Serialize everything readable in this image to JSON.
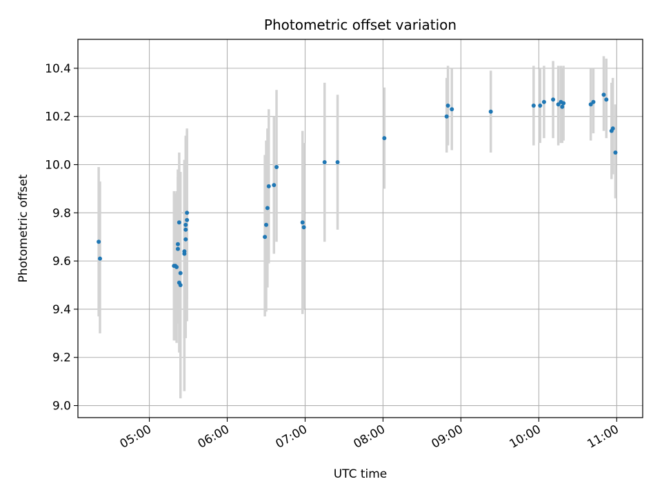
{
  "chart_data": {
    "type": "scatter",
    "title": "Photometric offset variation",
    "xlabel": "UTC time",
    "ylabel": "Photometric offset",
    "x_unit": "hours UTC",
    "xlim": [
      "04:05",
      "11:20"
    ],
    "ylim": [
      8.95,
      10.52
    ],
    "xticks": [
      "05:00",
      "06:00",
      "07:00",
      "08:00",
      "09:00",
      "10:00",
      "11:00"
    ],
    "yticks": [
      "9.0",
      "9.2",
      "9.4",
      "9.6",
      "9.8",
      "10.0",
      "10.2",
      "10.4"
    ],
    "grid": true,
    "legend": "none",
    "colors": {
      "point": "#1f77b4",
      "errorbar": "#d3d3d3",
      "grid": "#b0b0b0"
    },
    "points": [
      {
        "x": "04:21",
        "y": 9.68,
        "ylo": 9.37,
        "yhi": 9.99
      },
      {
        "x": "04:22",
        "y": 9.61,
        "ylo": 9.3,
        "yhi": 9.93
      },
      {
        "x": "05:19",
        "y": 9.58,
        "ylo": 9.27,
        "yhi": 9.89
      },
      {
        "x": "05:20",
        "y": 9.58,
        "ylo": 9.27,
        "yhi": 9.88
      },
      {
        "x": "05:21",
        "y": 9.575,
        "ylo": 9.26,
        "yhi": 9.89
      },
      {
        "x": "05:22",
        "y": 9.65,
        "ylo": 9.34,
        "yhi": 9.95
      },
      {
        "x": "05:22",
        "y": 9.67,
        "ylo": 9.35,
        "yhi": 9.98
      },
      {
        "x": "05:23",
        "y": 9.76,
        "ylo": 9.45,
        "yhi": 10.05
      },
      {
        "x": "05:23",
        "y": 9.51,
        "ylo": 9.22,
        "yhi": 9.82
      },
      {
        "x": "05:24",
        "y": 9.5,
        "ylo": 9.04,
        "yhi": 9.97
      },
      {
        "x": "05:24",
        "y": 9.55,
        "ylo": 9.03,
        "yhi": 9.96
      },
      {
        "x": "05:27",
        "y": 9.64,
        "ylo": 9.28,
        "yhi": 10.0
      },
      {
        "x": "05:27",
        "y": 9.63,
        "ylo": 9.06,
        "yhi": 10.02
      },
      {
        "x": "05:28",
        "y": 9.69,
        "ylo": 9.28,
        "yhi": 10.09
      },
      {
        "x": "05:28",
        "y": 9.73,
        "ylo": 9.31,
        "yhi": 10.11
      },
      {
        "x": "05:28",
        "y": 9.75,
        "ylo": 9.33,
        "yhi": 10.12
      },
      {
        "x": "05:29",
        "y": 9.77,
        "ylo": 9.35,
        "yhi": 10.14
      },
      {
        "x": "05:29",
        "y": 9.8,
        "ylo": 9.44,
        "yhi": 10.15
      },
      {
        "x": "06:29",
        "y": 9.7,
        "ylo": 9.37,
        "yhi": 10.04
      },
      {
        "x": "06:30",
        "y": 9.75,
        "ylo": 9.39,
        "yhi": 10.1
      },
      {
        "x": "06:31",
        "y": 9.82,
        "ylo": 9.49,
        "yhi": 10.15
      },
      {
        "x": "06:32",
        "y": 9.91,
        "ylo": 9.59,
        "yhi": 10.23
      },
      {
        "x": "06:36",
        "y": 9.915,
        "ylo": 9.63,
        "yhi": 10.2
      },
      {
        "x": "06:38",
        "y": 9.99,
        "ylo": 9.68,
        "yhi": 10.31
      },
      {
        "x": "06:58",
        "y": 9.76,
        "ylo": 9.38,
        "yhi": 10.14
      },
      {
        "x": "06:59",
        "y": 9.74,
        "ylo": 9.4,
        "yhi": 10.09
      },
      {
        "x": "07:15",
        "y": 10.01,
        "ylo": 9.68,
        "yhi": 10.34
      },
      {
        "x": "07:25",
        "y": 10.01,
        "ylo": 9.73,
        "yhi": 10.29
      },
      {
        "x": "08:01",
        "y": 10.11,
        "ylo": 9.9,
        "yhi": 10.32
      },
      {
        "x": "08:49",
        "y": 10.2,
        "ylo": 10.05,
        "yhi": 10.36
      },
      {
        "x": "08:50",
        "y": 10.245,
        "ylo": 10.08,
        "yhi": 10.41
      },
      {
        "x": "08:53",
        "y": 10.23,
        "ylo": 10.06,
        "yhi": 10.4
      },
      {
        "x": "09:23",
        "y": 10.22,
        "ylo": 10.05,
        "yhi": 10.39
      },
      {
        "x": "09:56",
        "y": 10.245,
        "ylo": 10.08,
        "yhi": 10.41
      },
      {
        "x": "10:01",
        "y": 10.245,
        "ylo": 10.09,
        "yhi": 10.4
      },
      {
        "x": "10:04",
        "y": 10.26,
        "ylo": 10.11,
        "yhi": 10.41
      },
      {
        "x": "10:11",
        "y": 10.27,
        "ylo": 10.11,
        "yhi": 10.43
      },
      {
        "x": "10:15",
        "y": 10.25,
        "ylo": 10.08,
        "yhi": 10.41
      },
      {
        "x": "10:17",
        "y": 10.26,
        "ylo": 10.09,
        "yhi": 10.41
      },
      {
        "x": "10:18",
        "y": 10.24,
        "ylo": 10.09,
        "yhi": 10.4
      },
      {
        "x": "10:19",
        "y": 10.255,
        "ylo": 10.1,
        "yhi": 10.41
      },
      {
        "x": "10:40",
        "y": 10.25,
        "ylo": 10.1,
        "yhi": 10.4
      },
      {
        "x": "10:42",
        "y": 10.26,
        "ylo": 10.13,
        "yhi": 10.4
      },
      {
        "x": "10:50",
        "y": 10.29,
        "ylo": 10.14,
        "yhi": 10.45
      },
      {
        "x": "10:52",
        "y": 10.27,
        "ylo": 10.11,
        "yhi": 10.44
      },
      {
        "x": "10:56",
        "y": 10.14,
        "ylo": 9.94,
        "yhi": 10.34
      },
      {
        "x": "10:57",
        "y": 10.15,
        "ylo": 9.96,
        "yhi": 10.36
      },
      {
        "x": "10:59",
        "y": 10.05,
        "ylo": 9.86,
        "yhi": 10.25
      }
    ]
  }
}
